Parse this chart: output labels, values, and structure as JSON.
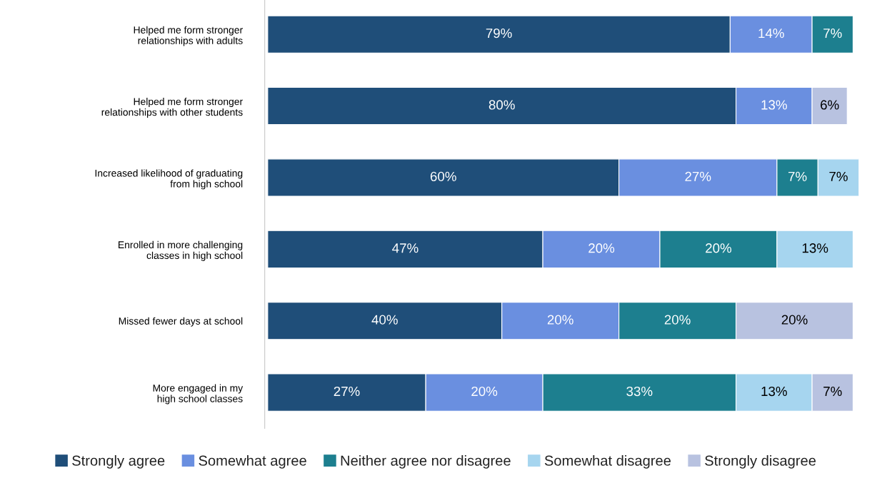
{
  "chart_data": {
    "type": "bar",
    "orientation": "horizontal",
    "stacked": true,
    "legend": "bottom",
    "grid": false,
    "categories": [
      "Helped me form stronger\nrelationships with adults",
      "Helped me form stronger\nrelationships with other students",
      "Increased likelihood of graduating\nfrom high school",
      "Enrolled in more challenging\nclasses in high school",
      "Missed fewer days at school",
      "More engaged in my\nhigh school classes"
    ],
    "series": [
      {
        "name": "Strongly agree",
        "color": "#1f4e79",
        "values": [
          79,
          80,
          60,
          47,
          40,
          27
        ],
        "value_labels": [
          "79%",
          "80%",
          "60%",
          "47%",
          "40%",
          "27%"
        ]
      },
      {
        "name": "Somewhat agree",
        "color": "#6a8fe0",
        "values": [
          14,
          13,
          27,
          20,
          20,
          20
        ],
        "value_labels": [
          "14%",
          "13%",
          "27%",
          "20%",
          "20%",
          "20%"
        ]
      },
      {
        "name": "Neither agree nor disagree",
        "color": "#1d7f8f",
        "values": [
          7,
          null,
          7,
          20,
          20,
          33
        ],
        "value_labels": [
          "7%",
          null,
          "7%",
          "20%",
          "20%",
          "33%"
        ]
      },
      {
        "name": "Somewhat disagree",
        "color": "#a6d5ef",
        "values": [
          null,
          null,
          7,
          13,
          null,
          13
        ],
        "value_labels": [
          null,
          null,
          "7%",
          "13%",
          null,
          "13%"
        ]
      },
      {
        "name": "Strongly disagree",
        "color": "#b8c2e0",
        "values": [
          null,
          6,
          null,
          null,
          20,
          7
        ],
        "value_labels": [
          null,
          "6%",
          null,
          null,
          "20%",
          "7%"
        ]
      }
    ]
  }
}
